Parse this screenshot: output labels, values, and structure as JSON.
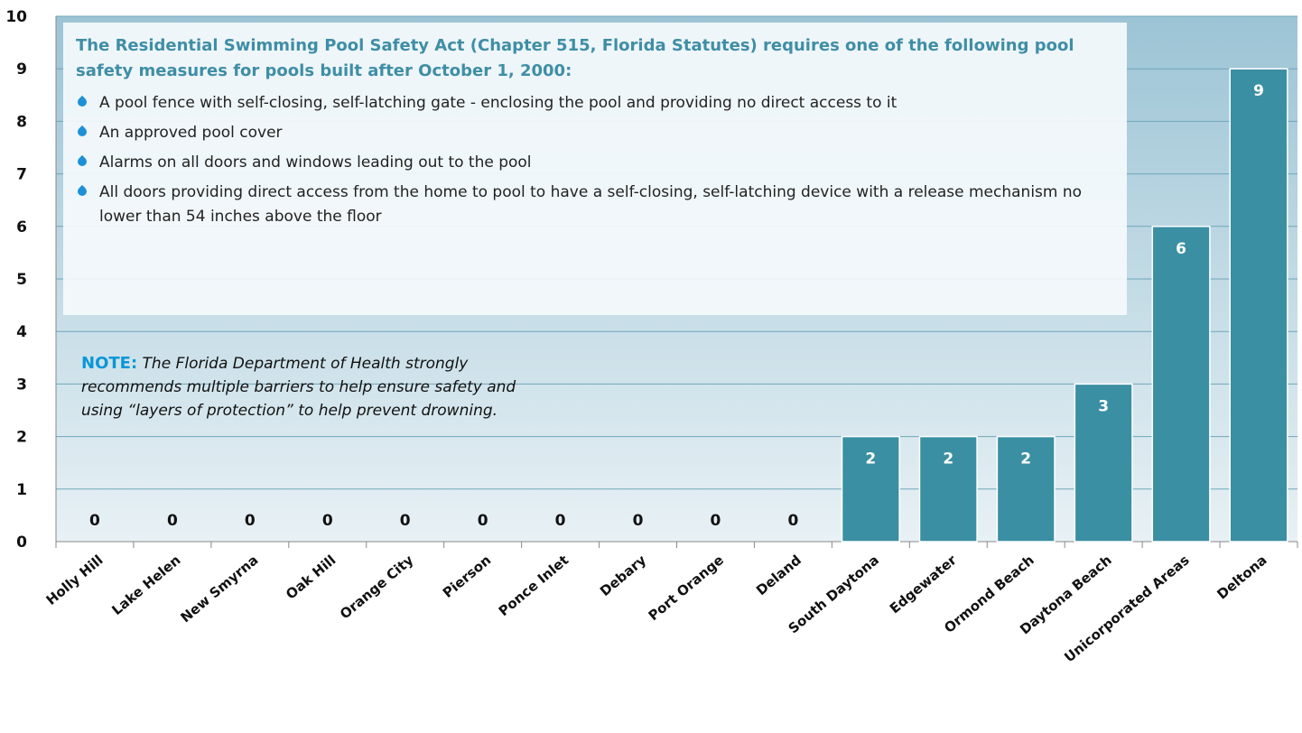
{
  "chart_data": {
    "type": "bar",
    "categories": [
      "Holly Hill",
      "Lake Helen",
      "New Smyrna",
      "Oak Hill",
      "Orange City",
      "Pierson",
      "Ponce Inlet",
      "Debary",
      "Port Orange",
      "Deland",
      "South Daytona",
      "Edgewater",
      "Ormond Beach",
      "Daytona Beach",
      "Unicorporated Areas",
      "Deltona"
    ],
    "values": [
      0,
      0,
      0,
      0,
      0,
      0,
      0,
      0,
      0,
      0,
      2,
      2,
      2,
      3,
      6,
      9
    ],
    "color": "#3a8fa3",
    "ylim": [
      0,
      10
    ],
    "yticks": [
      0,
      1,
      2,
      3,
      4,
      5,
      6,
      7,
      8,
      9,
      10
    ],
    "grid": true,
    "annotation": {
      "heading": "The Residential Swimming Pool Safety Act (Chapter 515, Florida Statutes) requires one of the following pool safety measures for pools built after October 1, 2000:",
      "bullets": [
        "A pool fence with self-closing, self-latching gate - enclosing the pool and providing no direct access to it",
        "An approved pool cover",
        "Alarms on all doors and windows leading out to the pool",
        "All doors providing direct access from the home to pool to have a self-closing, self-latching device with a release mechanism no lower than 54 inches above the floor"
      ],
      "note_label": "NOTE:",
      "note": "The Florida Department of Health strongly recommends multiple barriers to help ensure safety and using “layers of protection” to help prevent drowning."
    }
  }
}
